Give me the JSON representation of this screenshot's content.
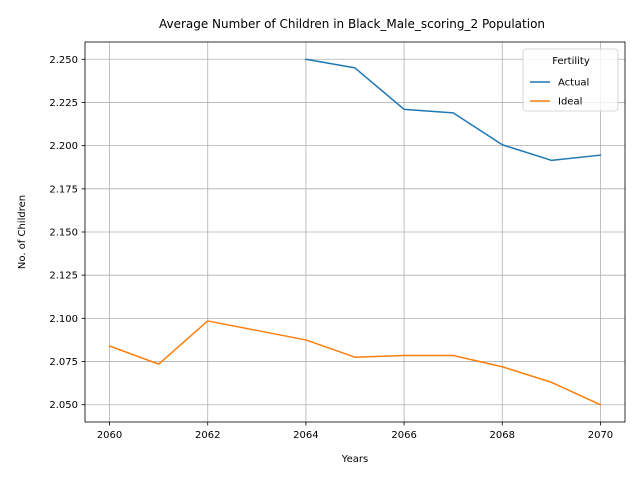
{
  "chart_data": {
    "type": "line",
    "title": "Average Number of Children in Black_Male_scoring_2 Population",
    "xlabel": "Years",
    "ylabel": "No. of Children",
    "xlim": [
      2059.5,
      2070.5
    ],
    "ylim": [
      2.04,
      2.26
    ],
    "xticks": [
      2060,
      2062,
      2064,
      2066,
      2068,
      2070
    ],
    "xtick_labels": [
      "2060",
      "2062",
      "2064",
      "2066",
      "2068",
      "2070"
    ],
    "yticks": [
      2.05,
      2.075,
      2.1,
      2.125,
      2.15,
      2.175,
      2.2,
      2.225,
      2.25
    ],
    "ytick_labels": [
      "2.050",
      "2.075",
      "2.100",
      "2.125",
      "2.150",
      "2.175",
      "2.200",
      "2.225",
      "2.250"
    ],
    "grid": true,
    "legend": {
      "title": "Fertility",
      "placement": "top-right"
    },
    "series": [
      {
        "name": "Actual",
        "color": "#1f77b4",
        "x": [
          2064,
          2065,
          2066,
          2067,
          2068,
          2069,
          2070
        ],
        "y": [
          2.25,
          2.245,
          2.221,
          2.219,
          2.2005,
          2.1915,
          2.1945
        ]
      },
      {
        "name": "Ideal",
        "color": "#ff7f0e",
        "x": [
          2060,
          2061,
          2062,
          2063,
          2064,
          2065,
          2066,
          2067,
          2068,
          2069,
          2070
        ],
        "y": [
          2.084,
          2.0735,
          2.0985,
          2.093,
          2.0875,
          2.0775,
          2.0785,
          2.0785,
          2.072,
          2.063,
          2.05
        ]
      }
    ]
  }
}
